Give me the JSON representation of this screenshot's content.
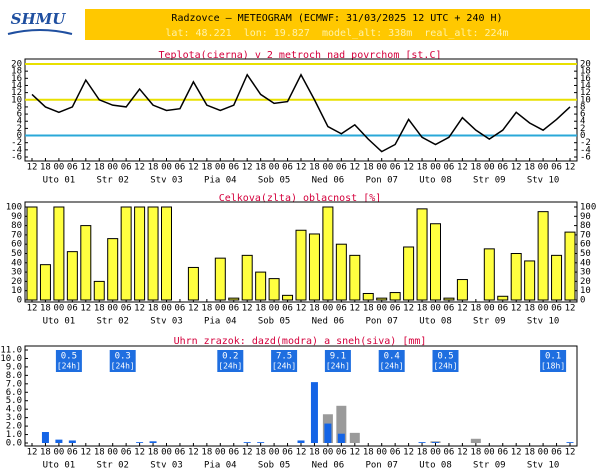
{
  "header": {
    "logo": "SHMU",
    "title": "Radzovce – METEOGRAM (ECMWF: 31/03/2025 12 UTC + 240 H)",
    "info": "lat: 48.221  lon: 19.827  model_alt: 338m  real_alt: 224m"
  },
  "chart_data": [
    {
      "type": "line",
      "title": "Teplota(cierna) v 2 metroch nad povrchom [st.C]",
      "categories": [
        "12",
        "18",
        "00",
        "06",
        "12",
        "18",
        "00",
        "06",
        "12",
        "18",
        "00",
        "06",
        "12",
        "18",
        "00",
        "06",
        "12",
        "18",
        "00",
        "06",
        "12",
        "18",
        "00",
        "06",
        "12",
        "18",
        "00",
        "06",
        "12",
        "18",
        "00",
        "06",
        "12",
        "18",
        "00",
        "06",
        "12",
        "18",
        "00",
        "06",
        "12"
      ],
      "days": [
        "Uto 01",
        "Str 02",
        "Stv 03",
        "Pia 04",
        "Sob 05",
        "Ned 06",
        "Pon 07",
        "Uto 08",
        "Str 09",
        "Stv 10"
      ],
      "series": [
        {
          "color": "#000000",
          "values": [
            11.5,
            8,
            6.5,
            8,
            15.5,
            10,
            8.5,
            8,
            13,
            8.5,
            7,
            7.5,
            15,
            8.5,
            7,
            8.5,
            17,
            11.5,
            9,
            9.5,
            17,
            10,
            2.5,
            0.5,
            3,
            -1,
            -4.5,
            -2.5,
            4.5,
            -0.5,
            -2.5,
            -0.5,
            5,
            1.5,
            -1,
            1.5,
            6.5,
            3.5,
            1.5,
            4.5,
            8
          ]
        }
      ],
      "reference_lines": [
        {
          "value": 20,
          "color": "#e8e000"
        },
        {
          "value": 10,
          "color": "#e8e000"
        },
        {
          "value": 0,
          "color": "#2aa8d8"
        }
      ],
      "ylim": [
        -6,
        20
      ],
      "yticks": [
        -6,
        -4,
        -2,
        0,
        2,
        4,
        6,
        8,
        10,
        12,
        14,
        16,
        18,
        20
      ]
    },
    {
      "type": "bar",
      "title": "Celkova(zlta) oblacnost [%]",
      "categories": [
        "12",
        "18",
        "00",
        "06",
        "12",
        "18",
        "00",
        "06",
        "12",
        "18",
        "00",
        "06",
        "12",
        "18",
        "00",
        "06",
        "12",
        "18",
        "00",
        "06",
        "12",
        "18",
        "00",
        "06",
        "12",
        "18",
        "00",
        "06",
        "12",
        "18",
        "00",
        "06",
        "12",
        "18",
        "00",
        "06",
        "12",
        "18",
        "00",
        "06",
        "12"
      ],
      "days": [
        "Uto 01",
        "Str 02",
        "Stv 03",
        "Pia 04",
        "Sob 05",
        "Ned 06",
        "Pon 07",
        "Uto 08",
        "Str 09",
        "Stv 10"
      ],
      "series": [
        {
          "color": "#ffff40",
          "values": [
            100,
            38,
            100,
            52,
            80,
            20,
            66,
            100,
            100,
            100,
            100,
            0,
            35,
            0,
            45,
            2,
            48,
            30,
            23,
            5,
            75,
            71,
            100,
            60,
            48,
            7,
            2,
            8,
            57,
            98,
            82,
            2,
            22,
            0,
            55,
            4,
            50,
            42,
            95,
            48,
            73
          ]
        }
      ],
      "ylim": [
        0,
        100
      ],
      "yticks": [
        0,
        10,
        20,
        30,
        40,
        50,
        60,
        70,
        80,
        90,
        100
      ]
    },
    {
      "type": "bar",
      "title": "Uhrn zrazok: dazd(modra) a sneh(siva) [mm]",
      "categories": [
        "12",
        "18",
        "00",
        "06",
        "12",
        "18",
        "00",
        "06",
        "12",
        "18",
        "00",
        "06",
        "12",
        "18",
        "00",
        "06",
        "12",
        "18",
        "00",
        "06",
        "12",
        "18",
        "00",
        "06",
        "12",
        "18",
        "00",
        "06",
        "12",
        "18",
        "00",
        "06",
        "12",
        "18",
        "00",
        "06",
        "12",
        "18",
        "00",
        "06",
        "12"
      ],
      "days": [
        "Uto 01",
        "Str 02",
        "Stv 03",
        "Pia 04",
        "Sob 05",
        "Ned 06",
        "Pon 07",
        "Uto 08",
        "Str 09",
        "Stv 10"
      ],
      "series": [
        {
          "color": "#9a9a9a",
          "values": [
            0,
            0,
            0,
            0,
            0,
            0,
            0,
            0,
            0,
            0,
            0,
            0,
            0,
            0,
            0,
            0,
            0,
            0,
            0,
            0,
            0,
            0,
            3.4,
            4.4,
            1.2,
            0,
            0,
            0,
            0,
            0,
            0.2,
            0,
            0,
            0.5,
            0,
            0,
            0,
            0,
            0,
            0,
            0
          ]
        },
        {
          "color": "#1464e6",
          "values": [
            0,
            1.3,
            0.4,
            0.3,
            0,
            0,
            0,
            0,
            0.1,
            0.2,
            0,
            0,
            0,
            0,
            0,
            0,
            0.1,
            0.1,
            0,
            0,
            0.3,
            7.2,
            2.3,
            1.1,
            0,
            0,
            0,
            0,
            0,
            0.1,
            0.1,
            0,
            0,
            0,
            0,
            0,
            0,
            0,
            0,
            0,
            0.1
          ]
        }
      ],
      "daily_totals": [
        0.5,
        0.3,
        null,
        0.2,
        7.5,
        9.1,
        0.4,
        0.5,
        null,
        0.1
      ],
      "daily_periods": [
        "[24h]",
        "[24h]",
        null,
        "[24h]",
        "[24h]",
        "[24h]",
        "[24h]",
        "[24h]",
        null,
        "[18h]"
      ],
      "ylim": [
        0,
        11
      ],
      "yticks": [
        {
          "value": 0,
          "label": "0.0"
        },
        {
          "value": 1,
          "label": "1.0"
        },
        {
          "value": 2,
          "label": "2.0"
        },
        {
          "value": 3,
          "label": "3.0"
        },
        {
          "value": 4,
          "label": "4.0"
        },
        {
          "value": 5,
          "label": "5.0"
        },
        {
          "value": 6,
          "label": "6.0"
        },
        {
          "value": 7,
          "label": "7.0"
        },
        {
          "value": 8,
          "label": "8.0"
        },
        {
          "value": 9,
          "label": "9.0"
        },
        {
          "value": 10,
          "label": "10.0"
        },
        {
          "value": 11,
          "label": "11.0"
        }
      ]
    }
  ]
}
